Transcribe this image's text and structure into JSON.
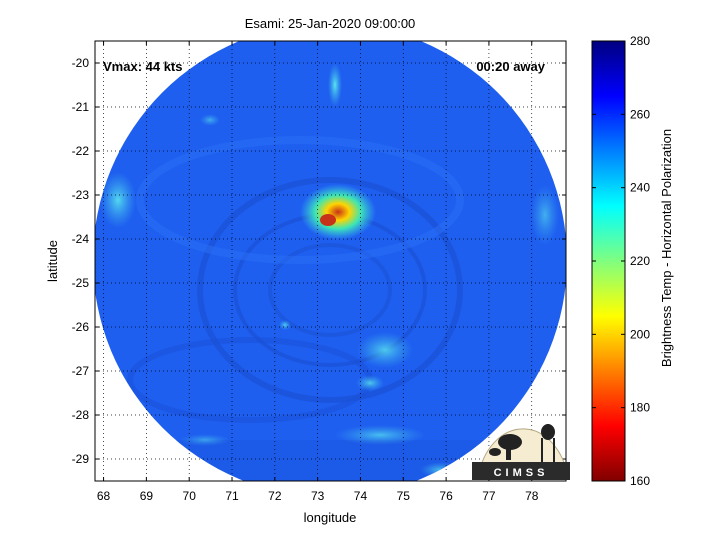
{
  "title": "Esami: 25-Jan-2020 09:00:00",
  "annotations": {
    "vmax": "Vmax: 44 kts",
    "time_away": "00:20 away"
  },
  "axes": {
    "xlabel": "longitude",
    "ylabel": "latitude",
    "xlim": [
      67.8,
      78.8
    ],
    "ylim": [
      -29.5,
      -19.5
    ],
    "xticks": [
      "68",
      "69",
      "70",
      "71",
      "72",
      "73",
      "74",
      "75",
      "76",
      "77",
      "78"
    ],
    "yticks": [
      "-20",
      "-21",
      "-22",
      "-23",
      "-24",
      "-25",
      "-26",
      "-27",
      "-28",
      "-29"
    ],
    "grid": true
  },
  "colorbar": {
    "label": "Brightness Temp - Horizontal Polarization",
    "range": [
      160,
      280
    ],
    "ticks": [
      "280",
      "260",
      "240",
      "220",
      "200",
      "180",
      "160"
    ],
    "colormap": "jet"
  },
  "logo": {
    "text": "CIMSS"
  },
  "colors": {
    "background": "#1e5ff0",
    "warm_core": "#c83218",
    "cyan_band": "#3cc8e6",
    "frame": "#000000"
  }
}
